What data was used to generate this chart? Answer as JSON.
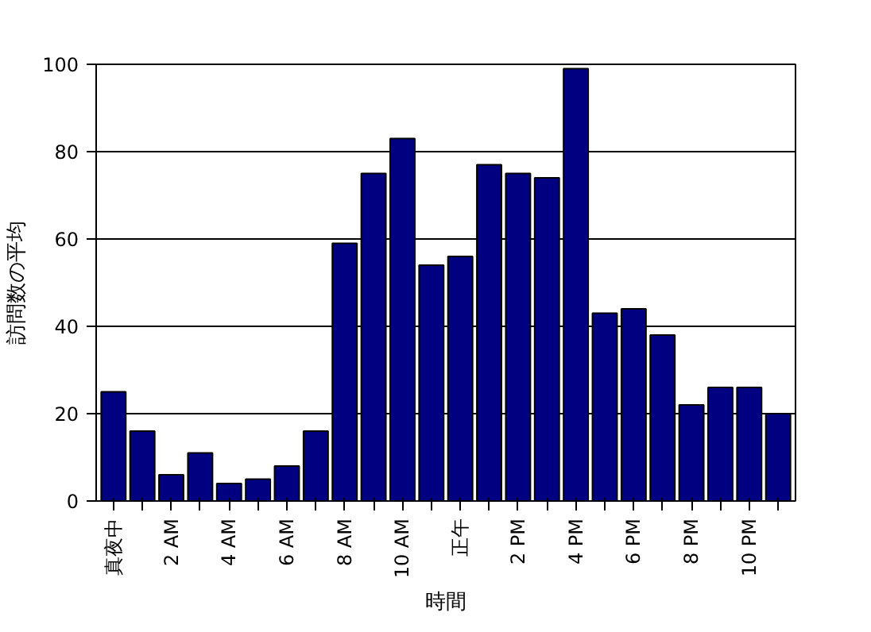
{
  "chart_data": {
    "type": "bar",
    "xlabel": "時間",
    "ylabel": "訪問数の平均",
    "categories": [
      "真夜中",
      null,
      "2 AM",
      null,
      "4 AM",
      null,
      "6 AM",
      null,
      "8 AM",
      null,
      "10 AM",
      null,
      "正午",
      null,
      "2 PM",
      null,
      "4 PM",
      null,
      "6 PM",
      null,
      "8 PM",
      null,
      "10 PM",
      null
    ],
    "values": [
      25,
      16,
      6,
      11,
      4,
      5,
      8,
      16,
      59,
      75,
      83,
      54,
      56,
      77,
      75,
      74,
      99,
      43,
      44,
      38,
      22,
      26,
      26,
      20
    ],
    "color": "#000080",
    "ylim": [
      0,
      100
    ],
    "yticks": [
      0,
      20,
      40,
      60,
      80,
      100
    ],
    "grid": "y"
  }
}
